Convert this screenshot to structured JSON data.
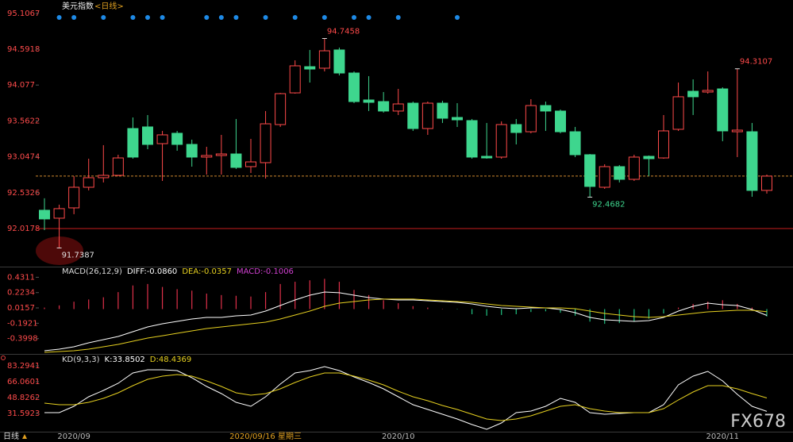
{
  "chart_data": [
    {
      "type": "candlestick",
      "title": "美元指数",
      "period": "<日线>",
      "ylim": [
        91.482,
        95.207
      ],
      "yticks": [
        95.1067,
        94.5918,
        94.077,
        93.5622,
        93.0474,
        92.5326,
        92.0178
      ],
      "up_color": "#ff4a4a",
      "down_color": "#3ed68e",
      "open": [
        92.28,
        92.166,
        92.314,
        92.61,
        92.747,
        92.781,
        93.453,
        93.476,
        93.236,
        93.385,
        93.225,
        93.043,
        93.066,
        93.088,
        92.906,
        92.963,
        93.51,
        93.965,
        94.341,
        94.319,
        94.581,
        94.25,
        93.863,
        93.84,
        93.704,
        93.817,
        93.453,
        93.817,
        93.612,
        93.567,
        93.054,
        93.043,
        93.51,
        93.407,
        93.783,
        93.704,
        93.407,
        93.077,
        92.61,
        92.906,
        92.724,
        93.054,
        93.031,
        93.442,
        93.988,
        93.977,
        94.022,
        93.407,
        93.407,
        92.565
      ],
      "high": [
        92.451,
        92.36,
        92.77,
        93.02,
        93.214,
        93.077,
        93.612,
        93.647,
        93.419,
        93.419,
        93.293,
        93.191,
        93.362,
        93.59,
        93.305,
        93.704,
        93.965,
        94.432,
        94.581,
        94.7458,
        94.615,
        94.273,
        94.205,
        93.977,
        94.022,
        93.84,
        93.84,
        93.852,
        93.817,
        93.59,
        93.533,
        93.556,
        93.59,
        93.874,
        93.84,
        93.726,
        93.476,
        93.088,
        92.94,
        92.929,
        93.077,
        93.066,
        93.647,
        94.113,
        94.159,
        94.273,
        94.045,
        94.3107,
        93.533,
        92.792
      ],
      "low": [
        91.995,
        91.7387,
        92.223,
        92.565,
        92.679,
        92.77,
        93.02,
        93.157,
        92.701,
        93.134,
        92.906,
        92.792,
        92.792,
        92.872,
        92.815,
        92.735,
        93.476,
        93.954,
        94.113,
        94.273,
        94.216,
        93.817,
        93.704,
        93.681,
        93.647,
        93.419,
        93.362,
        93.533,
        93.476,
        93.02,
        93.02,
        93.02,
        93.225,
        93.385,
        93.419,
        93.385,
        93.043,
        92.4682,
        92.587,
        92.679,
        92.701,
        92.77,
        93.02,
        93.419,
        93.647,
        93.954,
        93.271,
        93.043,
        92.474,
        92.519
      ],
      "close": [
        92.155,
        92.303,
        92.61,
        92.747,
        92.781,
        93.031,
        93.043,
        93.225,
        93.362,
        93.225,
        93.043,
        93.066,
        93.088,
        92.895,
        92.974,
        93.521,
        93.954,
        94.353,
        94.307,
        94.569,
        94.25,
        93.84,
        93.829,
        93.704,
        93.806,
        93.453,
        93.817,
        93.601,
        93.578,
        93.043,
        93.031,
        93.51,
        93.396,
        93.783,
        93.704,
        93.407,
        93.077,
        92.622,
        92.906,
        92.724,
        93.043,
        93.02,
        93.419,
        93.909,
        93.909,
        94.0,
        93.419,
        93.43,
        92.565,
        92.77
      ],
      "annotations": [
        {
          "label": "94.7458",
          "index": 19,
          "at": "high",
          "color": "#ff4a4a"
        },
        {
          "label": "91.7387",
          "index": 1,
          "at": "low",
          "color": "#e0e0e0"
        },
        {
          "label": "92.4682",
          "index": 37,
          "at": "low",
          "color": "#3ed68e"
        },
        {
          "label": "94.3107",
          "index": 47,
          "at": "high",
          "color": "#ff4a4a"
        }
      ],
      "hlines": [
        {
          "value": 92.0178,
          "color": "#c81e1e",
          "dashed": false
        },
        {
          "value": 92.77,
          "color": "#d08a30",
          "dashed": true
        }
      ],
      "signals": [
        1,
        2,
        4,
        6,
        7,
        8,
        11,
        12,
        13,
        15,
        17,
        19,
        21,
        22,
        24,
        28
      ],
      "signal_color": "#1e8ae6"
    },
    {
      "type": "macd",
      "title": "MACD(26,12,9)",
      "ylim": [
        -0.597,
        0.543
      ],
      "yticks": [
        0.4311,
        0.2234,
        0.0157,
        -0.1921,
        -0.3998
      ],
      "bar_up_color": "#e0304a",
      "bar_down_color": "#20c080",
      "series": [
        {
          "name": "DIFF:-0.0860",
          "color": "#ffffff",
          "kind": "line",
          "values": [
            -0.565,
            -0.543,
            -0.511,
            -0.457,
            -0.414,
            -0.371,
            -0.307,
            -0.242,
            -0.199,
            -0.167,
            -0.135,
            -0.113,
            -0.113,
            -0.091,
            -0.081,
            -0.027,
            0.048,
            0.124,
            0.188,
            0.231,
            0.221,
            0.188,
            0.156,
            0.135,
            0.124,
            0.124,
            0.113,
            0.102,
            0.091,
            0.07,
            0.038,
            0.016,
            0.005,
            0.016,
            0.016,
            -0.005,
            -0.048,
            -0.113,
            -0.145,
            -0.156,
            -0.167,
            -0.156,
            -0.113,
            -0.027,
            0.038,
            0.081,
            0.059,
            0.048,
            -0.005,
            -0.086
          ]
        },
        {
          "name": "DEA:-0.0357",
          "color": "#e6d020",
          "kind": "line",
          "values": [
            -0.586,
            -0.576,
            -0.565,
            -0.543,
            -0.511,
            -0.479,
            -0.436,
            -0.393,
            -0.361,
            -0.328,
            -0.296,
            -0.264,
            -0.242,
            -0.221,
            -0.199,
            -0.178,
            -0.135,
            -0.081,
            -0.027,
            0.038,
            0.081,
            0.102,
            0.124,
            0.135,
            0.135,
            0.135,
            0.124,
            0.113,
            0.102,
            0.091,
            0.07,
            0.048,
            0.038,
            0.027,
            0.016,
            0.016,
            0.005,
            -0.027,
            -0.059,
            -0.081,
            -0.102,
            -0.113,
            -0.102,
            -0.081,
            -0.059,
            -0.038,
            -0.027,
            -0.016,
            -0.016,
            -0.036
          ]
        },
        {
          "name": "MACD:-0.1006",
          "color": "#d040d0",
          "kind": "bar",
          "values": [
            0.02,
            0.05,
            0.1,
            0.13,
            0.16,
            0.23,
            0.32,
            0.34,
            0.3,
            0.27,
            0.25,
            0.21,
            0.19,
            0.18,
            0.17,
            0.23,
            0.34,
            0.37,
            0.39,
            0.41,
            0.37,
            0.26,
            0.19,
            0.12,
            0.08,
            0.04,
            0.02,
            0.005,
            -0.005,
            -0.07,
            -0.09,
            -0.08,
            -0.07,
            -0.04,
            -0.03,
            -0.05,
            -0.09,
            -0.17,
            -0.2,
            -0.19,
            -0.17,
            -0.13,
            -0.06,
            0.02,
            0.07,
            0.1,
            0.12,
            0.07,
            0.02,
            -0.1
          ]
        }
      ]
    },
    {
      "type": "kd",
      "title": "KD(9,3,3)",
      "ylim": [
        10.9,
        92.8
      ],
      "yticks": [
        83.2941,
        66.0601,
        48.8262,
        31.5923
      ],
      "series": [
        {
          "name": "K:33.8502",
          "color": "#ffffff",
          "kind": "line",
          "values": [
            32.45,
            32.45,
            39.35,
            49.69,
            56.58,
            64.34,
            75.54,
            78.98,
            78.98,
            78.12,
            70.37,
            60.89,
            53.13,
            43.65,
            39.35,
            49.69,
            63.47,
            75.54,
            78.12,
            82.43,
            78.12,
            71.23,
            65.2,
            58.3,
            49.69,
            41.07,
            35.9,
            30.73,
            25.56,
            19.53,
            14.36,
            21.25,
            32.45,
            34.18,
            39.35,
            47.97,
            43.65,
            32.45,
            30.73,
            31.59,
            32.45,
            32.45,
            41.07,
            62.61,
            72.09,
            77.26,
            66.92,
            52.27,
            39.35,
            33.85
          ]
        },
        {
          "name": "D:48.4369",
          "color": "#e6d020",
          "kind": "line",
          "values": [
            42.79,
            41.07,
            41.07,
            43.65,
            47.97,
            53.99,
            61.75,
            68.65,
            72.09,
            73.82,
            72.09,
            66.92,
            60.89,
            53.99,
            51.41,
            53.13,
            58.3,
            65.2,
            71.23,
            75.54,
            75.54,
            72.09,
            67.78,
            62.61,
            55.72,
            49.69,
            45.38,
            40.21,
            35.9,
            30.73,
            25.56,
            23.84,
            25.56,
            29.01,
            34.18,
            39.35,
            41.07,
            36.76,
            34.18,
            32.45,
            32.45,
            32.45,
            36.76,
            46.24,
            54.86,
            61.75,
            61.75,
            58.3,
            53.13,
            48.44
          ]
        }
      ],
      "categories": [
        null,
        null,
        "2020/09",
        null,
        null,
        null,
        null,
        null,
        null,
        null,
        null,
        null,
        null,
        null,
        null,
        "2020/09/16 星期三",
        null,
        null,
        null,
        null,
        null,
        null,
        null,
        null,
        "2020/10",
        null,
        null,
        null,
        null,
        null,
        null,
        null,
        null,
        null,
        null,
        null,
        null,
        null,
        null,
        null,
        null,
        null,
        null,
        null,
        null,
        null,
        "2020/11",
        null,
        null,
        null
      ],
      "highlight_category": 15,
      "highlight_color": "#e0a020"
    }
  ],
  "period_label": "日线",
  "watermark": "FX678"
}
